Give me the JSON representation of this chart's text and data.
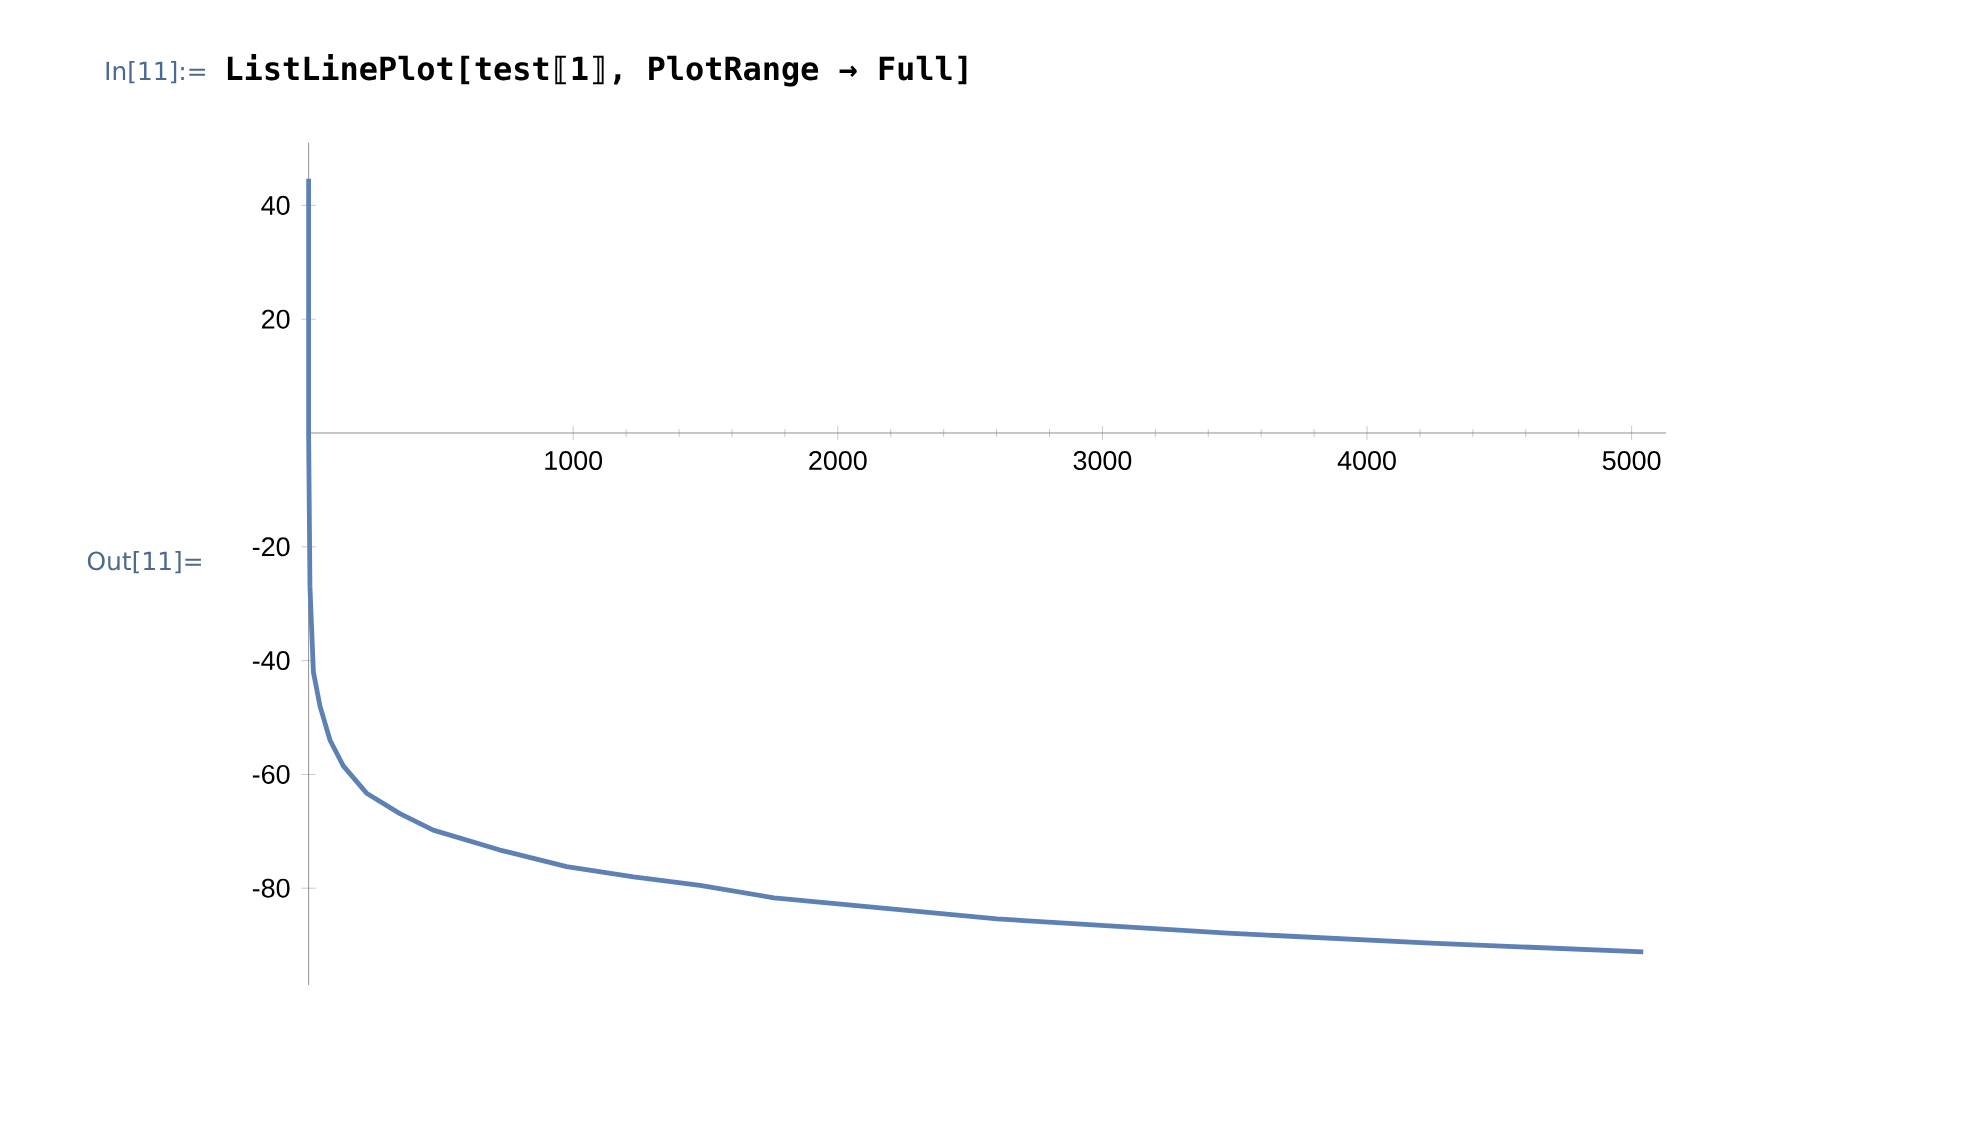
{
  "chart_data": {
    "type": "line",
    "title": "ListLinePlot[test⟦1⟧, PlotRange → Full]",
    "annotations": [
      "In[11]:=",
      "Out[11]="
    ],
    "xlim": [
      0,
      5130
    ],
    "ylim": [
      -97,
      51
    ],
    "xticks": [
      1000,
      2000,
      3000,
      4000,
      5000
    ],
    "yticks": [
      -80,
      -60,
      -40,
      -20,
      20,
      40
    ],
    "marker": "none",
    "line_style": "solid",
    "series": [
      {
        "color": "#5e81b5",
        "x": [
          0,
          0,
          5,
          18,
          43,
          81,
          131,
          219,
          345,
          471,
          723,
          975,
          1228,
          1479,
          1759,
          2602,
          3472,
          4261,
          5044
        ],
        "values": [
          44.7,
          0,
          -27,
          -42,
          -48,
          -54,
          -58.5,
          -63.3,
          -66.9,
          -69.8,
          -73.3,
          -76.2,
          -78,
          -79.5,
          -81.7,
          -85.4,
          -87.9,
          -89.7,
          -91.2
        ]
      }
    ]
  }
}
